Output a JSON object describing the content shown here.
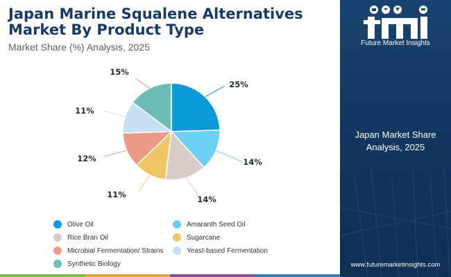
{
  "header": {
    "title": "Japan Marine Squalene Alternatives Market By Product Type",
    "subtitle": "Market Share (%) Analysis, 2025"
  },
  "chart_data": {
    "type": "pie",
    "title": "Japan Marine Squalene Alternatives Market By Product Type",
    "subtitle": "Market Share (%) Analysis, 2025",
    "start_angle_deg": 0,
    "direction": "clockwise",
    "legend_position": "bottom",
    "slices": [
      {
        "name": "Olive Oil",
        "value": 25,
        "label": "25%",
        "color": "#0a9bd7"
      },
      {
        "name": "Amaranth Seed Oil",
        "value": 14,
        "label": "14%",
        "color": "#6cd0f2"
      },
      {
        "name": "Rice Bran Oil",
        "value": 14,
        "label": "14%",
        "color": "#d9ccc6"
      },
      {
        "name": "Sugarcane",
        "value": 11,
        "label": "11%",
        "color": "#efc664"
      },
      {
        "name": "Microbial Fermentation/ Strains",
        "value": 12,
        "label": "12%",
        "color": "#ec9a86"
      },
      {
        "name": "Yeast-based Fermentation",
        "value": 11,
        "label": "11%",
        "color": "#c6e0f6"
      },
      {
        "name": "Synthetic Biology",
        "value": 15,
        "label": "15%",
        "color": "#6cbdb6"
      }
    ]
  },
  "side_panel": {
    "logo_text": "Future Market Insights",
    "heading": "Japan Market Share Analysis, 2025",
    "url": "www.futuremarketinsights.com"
  },
  "theme": {
    "navy": "#173b66",
    "bar_colors": [
      "#7dbf3f",
      "#e9a23b",
      "#8a4fa3",
      "#2d7fc1"
    ]
  }
}
